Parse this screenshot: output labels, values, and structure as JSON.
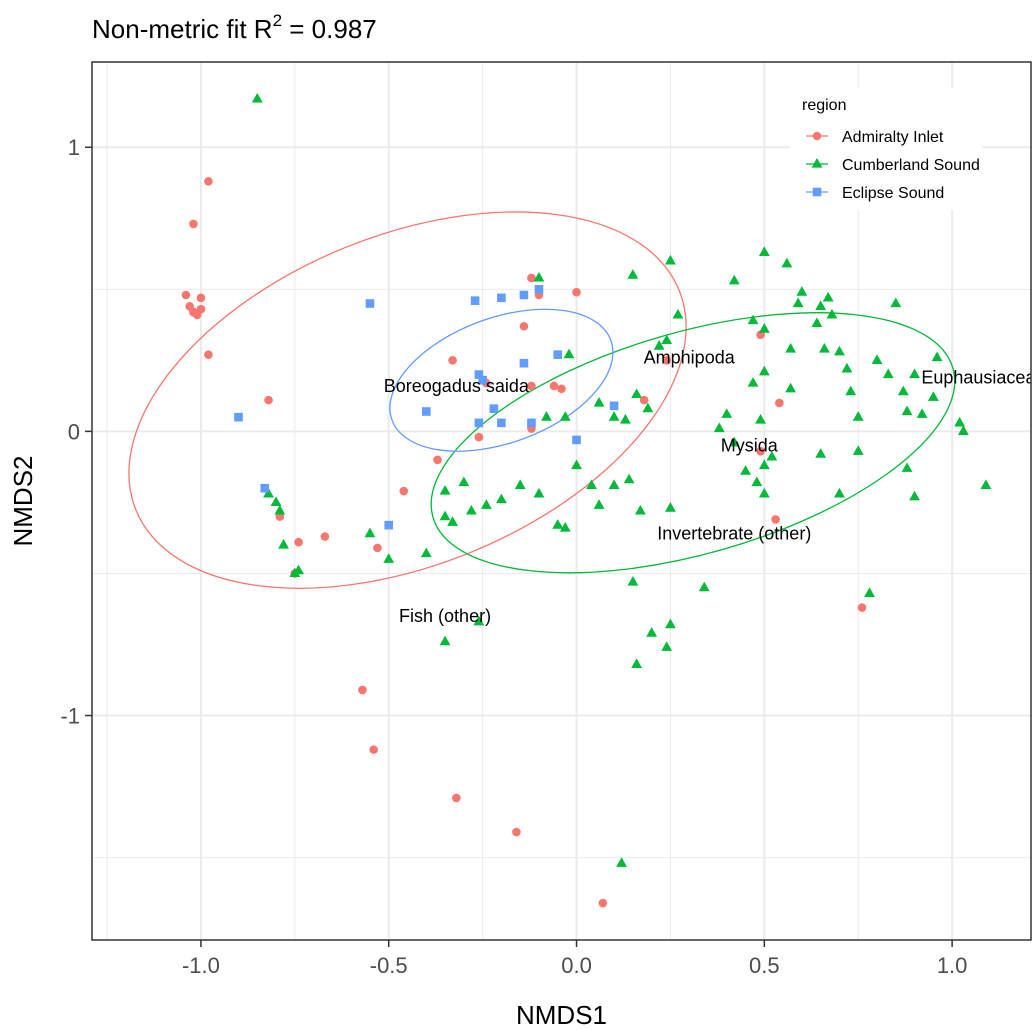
{
  "chart_data": {
    "type": "scatter",
    "title": "Non-metric fit R",
    "title_sup": "2",
    "title_value": " = 0.987",
    "xlabel": "NMDS1",
    "ylabel": "NMDS2",
    "xlim": [
      -1.29,
      1.21
    ],
    "ylim": [
      -1.79,
      1.3
    ],
    "x_ticks": [
      -1.0,
      -0.5,
      0.0,
      0.5,
      1.0
    ],
    "x_tick_labels": [
      "-1.0",
      "-0.5",
      "0.0",
      "0.5",
      "1.0"
    ],
    "y_ticks": [
      -1,
      0,
      1
    ],
    "y_tick_labels": [
      "-1",
      "0",
      "1"
    ],
    "grid": true,
    "legend": {
      "title": "region",
      "position": "top-right"
    },
    "series": [
      {
        "name": "Admiralty Inlet",
        "marker": "circle",
        "color": "#F8766D",
        "points": [
          [
            -0.98,
            0.88
          ],
          [
            -1.02,
            0.73
          ],
          [
            -1.04,
            0.48
          ],
          [
            -1.0,
            0.47
          ],
          [
            -1.03,
            0.44
          ],
          [
            -1.02,
            0.42
          ],
          [
            -1.0,
            0.43
          ],
          [
            -1.01,
            0.41
          ],
          [
            -1.02,
            0.42
          ],
          [
            -0.98,
            0.27
          ],
          [
            -0.82,
            0.11
          ],
          [
            -0.79,
            -0.3
          ],
          [
            -0.75,
            -0.5
          ],
          [
            -0.74,
            -0.39
          ],
          [
            -0.67,
            -0.37
          ],
          [
            -0.53,
            -0.41
          ],
          [
            -0.46,
            -0.21
          ],
          [
            -0.37,
            -0.1
          ],
          [
            -0.33,
            0.25
          ],
          [
            -0.26,
            -0.02
          ],
          [
            -0.24,
            0.17
          ],
          [
            -0.14,
            0.37
          ],
          [
            -0.12,
            0.54
          ],
          [
            -0.1,
            0.48
          ],
          [
            -0.06,
            0.16
          ],
          [
            -0.04,
            0.15
          ],
          [
            -0.12,
            0.16
          ],
          [
            -0.12,
            0.01
          ],
          [
            0.0,
            0.49
          ],
          [
            0.18,
            0.11
          ],
          [
            0.24,
            0.25
          ],
          [
            0.49,
            0.34
          ],
          [
            0.54,
            0.1
          ],
          [
            0.49,
            -0.07
          ],
          [
            0.53,
            -0.31
          ],
          [
            0.76,
            -0.62
          ],
          [
            -0.57,
            -0.91
          ],
          [
            -0.54,
            -1.12
          ],
          [
            -0.32,
            -1.29
          ],
          [
            -0.16,
            -1.41
          ],
          [
            0.07,
            -1.66
          ]
        ]
      },
      {
        "name": "Cumberland Sound",
        "marker": "triangle",
        "color": "#00BA38",
        "points": [
          [
            -0.85,
            1.17
          ],
          [
            -0.82,
            -0.22
          ],
          [
            -0.8,
            -0.25
          ],
          [
            -0.79,
            -0.28
          ],
          [
            -0.78,
            -0.4
          ],
          [
            -0.75,
            -0.5
          ],
          [
            -0.74,
            -0.49
          ],
          [
            -0.55,
            -0.36
          ],
          [
            -0.5,
            -0.45
          ],
          [
            -0.4,
            -0.43
          ],
          [
            -0.35,
            -0.21
          ],
          [
            -0.35,
            -0.3
          ],
          [
            -0.33,
            -0.32
          ],
          [
            -0.3,
            -0.18
          ],
          [
            -0.28,
            -0.28
          ],
          [
            -0.24,
            -0.26
          ],
          [
            -0.2,
            -0.24
          ],
          [
            -0.15,
            -0.19
          ],
          [
            -0.1,
            -0.22
          ],
          [
            -0.05,
            -0.33
          ],
          [
            -0.03,
            -0.34
          ],
          [
            0.0,
            -0.12
          ],
          [
            0.04,
            -0.19
          ],
          [
            0.06,
            -0.26
          ],
          [
            0.1,
            -0.19
          ],
          [
            0.14,
            -0.17
          ],
          [
            0.17,
            -0.28
          ],
          [
            -0.35,
            -0.74
          ],
          [
            -0.26,
            -0.67
          ],
          [
            0.12,
            -1.52
          ],
          [
            0.16,
            -0.82
          ],
          [
            0.2,
            -0.71
          ],
          [
            0.24,
            -0.76
          ],
          [
            0.25,
            -0.68
          ],
          [
            0.34,
            -0.55
          ],
          [
            -0.1,
            0.54
          ],
          [
            -0.02,
            0.27
          ],
          [
            -0.08,
            0.05
          ],
          [
            -0.03,
            0.05
          ],
          [
            0.06,
            0.1
          ],
          [
            0.1,
            0.05
          ],
          [
            0.13,
            0.04
          ],
          [
            0.15,
            0.55
          ],
          [
            0.22,
            0.3
          ],
          [
            0.25,
            0.6
          ],
          [
            0.27,
            0.41
          ],
          [
            0.16,
            0.13
          ],
          [
            0.19,
            0.08
          ],
          [
            0.24,
            0.32
          ],
          [
            0.42,
            0.53
          ],
          [
            0.5,
            0.63
          ],
          [
            0.56,
            0.59
          ],
          [
            0.59,
            0.45
          ],
          [
            0.6,
            0.49
          ],
          [
            0.65,
            0.44
          ],
          [
            0.67,
            0.47
          ],
          [
            0.68,
            0.41
          ],
          [
            0.72,
            0.22
          ],
          [
            0.73,
            0.14
          ],
          [
            0.75,
            0.05
          ],
          [
            0.8,
            0.25
          ],
          [
            0.83,
            0.2
          ],
          [
            0.85,
            0.45
          ],
          [
            0.87,
            0.14
          ],
          [
            0.88,
            0.07
          ],
          [
            0.9,
            0.2
          ],
          [
            0.92,
            0.06
          ],
          [
            0.95,
            0.12
          ],
          [
            0.96,
            0.26
          ],
          [
            1.02,
            0.03
          ],
          [
            1.03,
            0.0
          ],
          [
            1.09,
            -0.19
          ],
          [
            0.9,
            -0.23
          ],
          [
            0.88,
            -0.13
          ],
          [
            0.4,
            0.06
          ],
          [
            0.47,
            0.17
          ],
          [
            0.47,
            0.39
          ],
          [
            0.5,
            0.36
          ],
          [
            0.57,
            0.15
          ],
          [
            0.38,
            0.01
          ],
          [
            0.42,
            -0.04
          ],
          [
            0.45,
            -0.14
          ],
          [
            0.48,
            -0.18
          ],
          [
            0.5,
            -0.12
          ],
          [
            0.5,
            -0.22
          ],
          [
            0.52,
            -0.09
          ],
          [
            0.65,
            -0.08
          ],
          [
            0.7,
            -0.22
          ],
          [
            0.75,
            -0.07
          ],
          [
            0.78,
            -0.57
          ],
          [
            0.57,
            0.29
          ],
          [
            0.64,
            0.38
          ],
          [
            0.66,
            0.29
          ],
          [
            0.7,
            0.28
          ],
          [
            0.5,
            0.21
          ],
          [
            0.49,
            0.04
          ],
          [
            0.25,
            -0.27
          ],
          [
            0.15,
            -0.53
          ]
        ]
      },
      {
        "name": "Eclipse Sound",
        "marker": "square",
        "color": "#619CFF",
        "points": [
          [
            -0.55,
            0.45
          ],
          [
            -0.9,
            0.05
          ],
          [
            -0.83,
            -0.2
          ],
          [
            -0.5,
            -0.33
          ],
          [
            -0.4,
            0.07
          ],
          [
            -0.27,
            0.46
          ],
          [
            -0.2,
            0.47
          ],
          [
            -0.14,
            0.48
          ],
          [
            -0.1,
            0.5
          ],
          [
            -0.26,
            0.2
          ],
          [
            -0.25,
            0.18
          ],
          [
            -0.14,
            0.24
          ],
          [
            -0.05,
            0.27
          ],
          [
            -0.26,
            0.03
          ],
          [
            -0.22,
            0.08
          ],
          [
            -0.2,
            0.03
          ],
          [
            -0.12,
            0.03
          ],
          [
            0.0,
            -0.03
          ],
          [
            0.1,
            0.09
          ]
        ]
      }
    ],
    "ellipses": [
      {
        "series": "Admiralty Inlet",
        "cx": -0.45,
        "cy": 0.11,
        "rx": 0.78,
        "ry": 0.58,
        "rotate_deg": -22,
        "color": "#F8766D"
      },
      {
        "series": "Cumberland Sound",
        "cx": 0.31,
        "cy": -0.04,
        "rx": 0.72,
        "ry": 0.39,
        "rotate_deg": -16,
        "color": "#00BA38"
      },
      {
        "series": "Eclipse Sound",
        "cx": -0.2,
        "cy": 0.18,
        "rx": 0.31,
        "ry": 0.22,
        "rotate_deg": -20,
        "color": "#619CFF"
      }
    ],
    "annotations": [
      {
        "text": "Boreogadus saida",
        "x": -0.32,
        "y": 0.16
      },
      {
        "text": "Amphipoda",
        "x": 0.3,
        "y": 0.26
      },
      {
        "text": "Euphausiacea",
        "x": 1.07,
        "y": 0.19
      },
      {
        "text": "Mysida",
        "x": 0.46,
        "y": -0.05
      },
      {
        "text": "Invertebrate (other)",
        "x": 0.42,
        "y": -0.36
      },
      {
        "text": "Fish (other)",
        "x": -0.35,
        "y": -0.65
      }
    ]
  }
}
